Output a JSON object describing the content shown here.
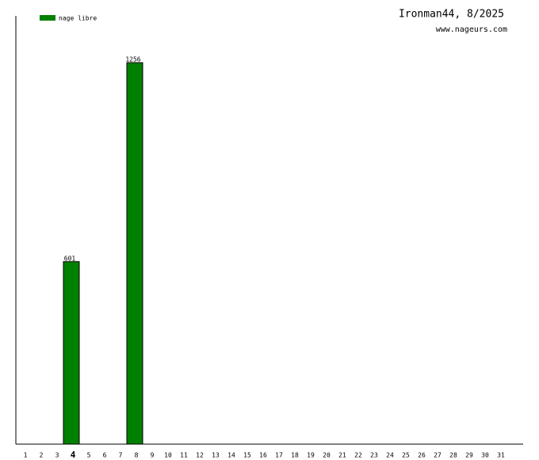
{
  "chart_data": {
    "type": "bar",
    "title": "Ironman44, 8/2025",
    "subtitle": "www.nageurs.com",
    "categories": [
      "1",
      "2",
      "3",
      "4",
      "5",
      "6",
      "7",
      "8",
      "9",
      "10",
      "11",
      "12",
      "13",
      "14",
      "15",
      "16",
      "17",
      "18",
      "19",
      "20",
      "21",
      "22",
      "23",
      "24",
      "25",
      "26",
      "27",
      "28",
      "29",
      "30",
      "31"
    ],
    "emphasis": "4",
    "series": [
      {
        "name": "nage libre",
        "color": "#008000",
        "values": [
          null,
          null,
          null,
          601,
          null,
          null,
          null,
          1256,
          null,
          null,
          null,
          null,
          null,
          null,
          null,
          null,
          null,
          null,
          null,
          null,
          null,
          null,
          null,
          null,
          null,
          null,
          null,
          null,
          null,
          null,
          null
        ]
      }
    ],
    "ylim": [
      0,
      1410
    ]
  }
}
